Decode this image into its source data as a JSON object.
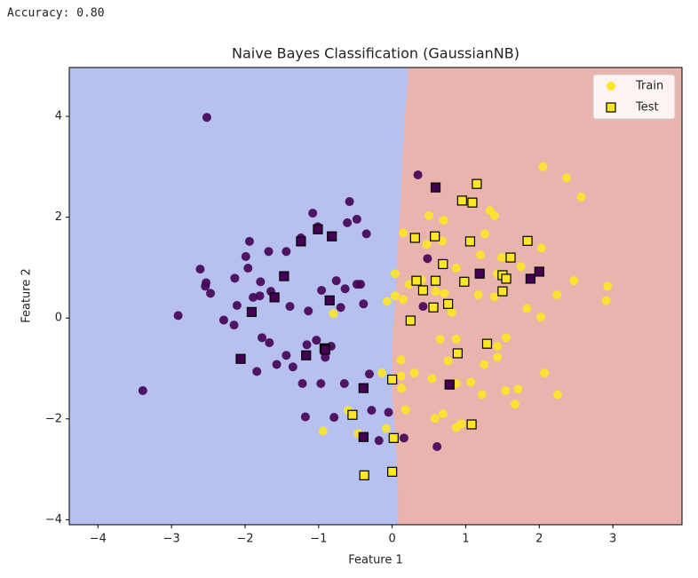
{
  "output_text": "Accuracy: 0.80",
  "chart_data": {
    "type": "scatter",
    "title": "Naive Bayes Classification (GaussianNB)",
    "x_label": "Feature 1",
    "y_label": "Feature 2",
    "xlim": [
      -4.39,
      3.94
    ],
    "ylim": [
      -4.1,
      4.97
    ],
    "xticks": [
      {
        "value": -4,
        "label": "−4"
      },
      {
        "value": -3,
        "label": "−3"
      },
      {
        "value": -2,
        "label": "−2"
      },
      {
        "value": -1,
        "label": "−1"
      },
      0,
      1,
      2,
      3
    ],
    "yticks": [
      {
        "value": -4,
        "label": "−4"
      },
      {
        "value": -2,
        "label": "−2"
      },
      0,
      2,
      4
    ],
    "legend": "upper right",
    "class_colors": [
      "#440154",
      "#fde725"
    ],
    "regions": {
      "colors": [
        "#b6c1ef",
        "#e9b3ae"
      ],
      "boundary_x": [
        0.22,
        0.2,
        0.15,
        0.12,
        0.08,
        0.05,
        0.0,
        0.0,
        0.05,
        0.08,
        0.08
      ],
      "boundary_y": [
        4.97,
        4.5,
        3.5,
        2.5,
        1.5,
        0.5,
        -0.5,
        -1.5,
        -2.5,
        -3.5,
        -4.1
      ]
    },
    "series": [
      {
        "name": "Train",
        "marker": "circle",
        "x": [
          -2.52,
          -3.39,
          -2.91,
          -2.61,
          -2.53,
          -2.47,
          -2.54,
          -2.29,
          -2.11,
          -2.14,
          -2.15,
          -1.94,
          -1.99,
          -1.96,
          -1.89,
          -1.79,
          -1.8,
          -1.68,
          -1.65,
          -1.77,
          -1.67,
          -1.84,
          -1.57,
          -1.44,
          -1.39,
          -1.44,
          -1.35,
          -1.24,
          -1.14,
          -1.08,
          -1.01,
          -1.16,
          -1.22,
          -1.18,
          -1.03,
          -0.96,
          -0.97,
          -0.91,
          -0.83,
          -0.76,
          -0.7,
          -0.64,
          -0.61,
          -0.58,
          -0.48,
          -0.39,
          -0.35,
          -0.65,
          -0.79,
          -0.48,
          -0.43,
          -0.31,
          -0.28,
          -0.18,
          -0.05,
          0.16,
          0.61,
          0.35,
          0.48,
          0.42,
          2.05,
          2.37,
          2.57,
          1.33,
          1.39,
          1.26,
          0.7,
          0.5,
          0.15,
          0.47,
          0.68,
          0.87,
          1.2,
          1.49,
          2.03,
          1.75,
          1.43,
          1.17,
          1.39,
          2.47,
          2.24,
          2.93,
          2.91,
          2.02,
          1.83,
          1.55,
          1.43,
          1.25,
          1.43,
          0.65,
          0.87,
          0.76,
          0.04,
          -0.07,
          0.04,
          0.23,
          0.4,
          0.59,
          0.71,
          0.81,
          0.15,
          0.12,
          0.13,
          0.3,
          0.12,
          0.54,
          0.87,
          1.07,
          1.22,
          1.54,
          1.71,
          2.07,
          2.25,
          1.67,
          0.18,
          0.58,
          0.69,
          0.87,
          0.94,
          -0.08,
          -0.94,
          -0.46,
          -0.8,
          -0.14,
          -0.6
        ],
        "values": [
          3.98,
          -1.44,
          0.05,
          0.97,
          0.7,
          0.49,
          0.63,
          -0.04,
          0.25,
          0.79,
          -0.14,
          1.52,
          1.22,
          0.99,
          0.41,
          0.72,
          0.44,
          1.32,
          0.53,
          -0.39,
          -0.49,
          -1.06,
          -0.92,
          1.32,
          0.23,
          -0.74,
          -0.97,
          1.59,
          0.14,
          2.08,
          1.81,
          -0.53,
          -1.3,
          -1.96,
          -0.44,
          0.55,
          -1.3,
          -0.78,
          -0.56,
          0.74,
          0.21,
          0.58,
          1.89,
          2.31,
          1.96,
          0.28,
          1.67,
          -1.3,
          -1.97,
          0.67,
          0.67,
          -1.11,
          -1.83,
          -2.43,
          -1.87,
          -2.38,
          -2.55,
          2.84,
          1.18,
          0.23,
          3.0,
          2.78,
          2.4,
          2.13,
          2.03,
          1.67,
          1.94,
          2.03,
          1.69,
          1.46,
          1.53,
          0.99,
          1.25,
          1.2,
          1.39,
          1.02,
          0.88,
          0.46,
          0.42,
          0.74,
          0.46,
          0.63,
          0.35,
          0.02,
          0.19,
          -0.39,
          -0.56,
          -0.92,
          -0.78,
          -0.42,
          -0.42,
          -0.85,
          0.88,
          0.33,
          0.44,
          0.67,
          0.76,
          0.53,
          0.49,
          0.11,
          0.37,
          -0.83,
          -1.39,
          -1.09,
          -1.15,
          -1.2,
          -1.3,
          -1.27,
          -1.52,
          -1.44,
          -1.41,
          -1.09,
          -1.52,
          -1.71,
          -1.82,
          -1.99,
          -1.9,
          -2.17,
          -2.1,
          -2.19,
          -2.24,
          -2.29,
          0.09,
          -1.09,
          -1.83
        ],
        "classes": [
          0,
          0,
          0,
          0,
          0,
          0,
          0,
          0,
          0,
          0,
          0,
          0,
          0,
          0,
          0,
          0,
          0,
          0,
          0,
          0,
          0,
          0,
          0,
          0,
          0,
          0,
          0,
          0,
          0,
          0,
          0,
          0,
          0,
          0,
          0,
          0,
          0,
          0,
          0,
          0,
          0,
          0,
          0,
          0,
          0,
          0,
          0,
          0,
          0,
          0,
          0,
          0,
          0,
          0,
          0,
          0,
          0,
          0,
          0,
          0,
          1,
          1,
          1,
          1,
          1,
          1,
          1,
          1,
          1,
          1,
          1,
          1,
          1,
          1,
          1,
          1,
          1,
          1,
          1,
          1,
          1,
          1,
          1,
          1,
          1,
          1,
          1,
          1,
          1,
          1,
          1,
          1,
          1,
          1,
          1,
          1,
          1,
          1,
          1,
          1,
          1,
          1,
          1,
          1,
          1,
          1,
          1,
          1,
          1,
          1,
          1,
          1,
          1,
          1,
          1,
          1,
          1,
          1,
          1,
          1,
          1,
          1,
          1,
          1,
          1
        ]
      },
      {
        "name": "Test",
        "marker": "square",
        "edgecolor": "#000000",
        "x": [
          -2.06,
          -1.91,
          -1.6,
          -1.47,
          -1.24,
          -1.01,
          -0.82,
          -0.85,
          -0.92,
          -1.17,
          -0.39,
          -0.39,
          0.59,
          1.19,
          1.88,
          2.0,
          0.78,
          -0.91,
          1.15,
          0.95,
          1.09,
          0.31,
          0.58,
          1.06,
          0.69,
          0.33,
          0.42,
          0.59,
          0.56,
          0.25,
          0.76,
          0.98,
          1.5,
          1.55,
          1.5,
          1.61,
          1.84,
          1.29,
          0.89,
          1.08,
          0.0,
          -0.54,
          0.02,
          -0.38,
          0.0
        ],
        "values": [
          -0.81,
          0.12,
          0.41,
          0.83,
          1.52,
          1.76,
          1.62,
          0.35,
          -0.6,
          -0.74,
          -1.39,
          -2.36,
          2.59,
          0.88,
          0.78,
          0.92,
          -1.32,
          -0.63,
          2.66,
          2.33,
          2.29,
          1.59,
          1.62,
          1.52,
          1.07,
          0.74,
          0.55,
          0.74,
          0.21,
          -0.05,
          0.28,
          0.72,
          0.85,
          0.78,
          0.53,
          1.2,
          1.53,
          -0.51,
          -0.7,
          -2.11,
          -1.22,
          -1.92,
          -2.38,
          -3.12,
          -3.05
        ],
        "classes": [
          0,
          0,
          0,
          0,
          0,
          0,
          0,
          0,
          0,
          0,
          0,
          0,
          0,
          0,
          0,
          0,
          0,
          0,
          1,
          1,
          1,
          1,
          1,
          1,
          1,
          1,
          1,
          1,
          1,
          1,
          1,
          1,
          1,
          1,
          1,
          1,
          1,
          1,
          1,
          1,
          1,
          1,
          1,
          1,
          1
        ]
      }
    ]
  }
}
